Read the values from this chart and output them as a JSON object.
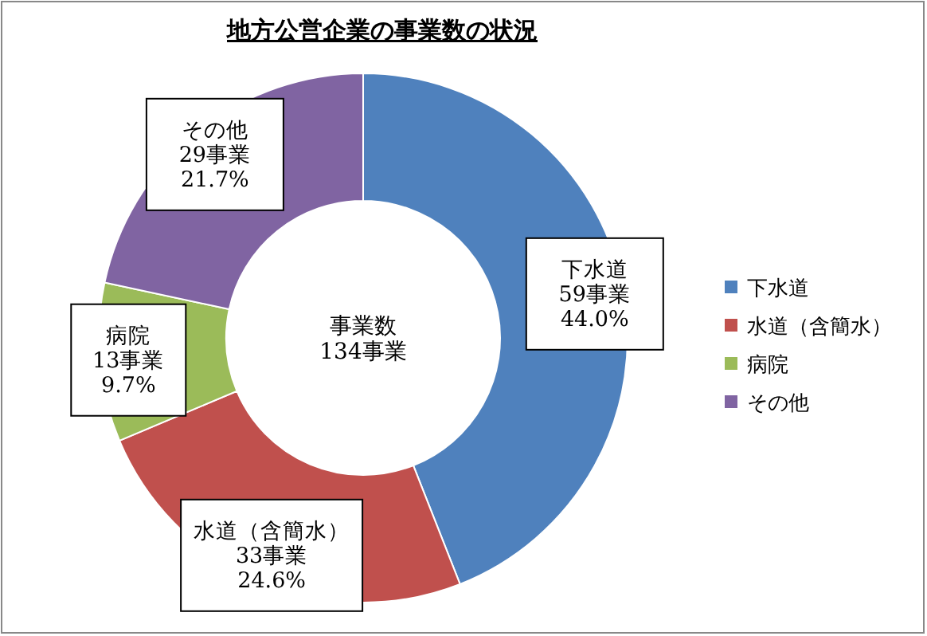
{
  "chart_data": {
    "type": "donut",
    "title": "地方公営企業の事業数の状況",
    "categories": [
      "下水道",
      "水道（含簡水）",
      "病院",
      "その他"
    ],
    "values": [
      59,
      33,
      13,
      29
    ],
    "colors": [
      "#4f81bd",
      "#c0504d",
      "#9bbb59",
      "#8064a2"
    ],
    "value_labels": [
      "59事業\n44.0%",
      "33事業\n24.6%",
      "13事業\n9.7%",
      "29事業\n21.7%"
    ],
    "annotations": [
      "事業数\n134事業"
    ],
    "legend": "right"
  }
}
